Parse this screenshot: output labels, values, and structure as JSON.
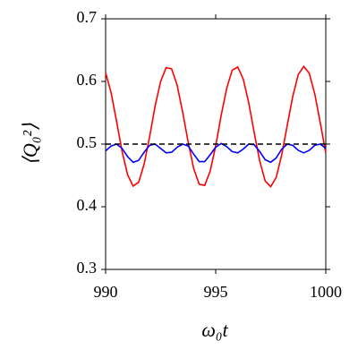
{
  "chart_data": {
    "type": "line",
    "xlabel": "ω₀t",
    "ylabel": "⟨Q₀²⟩",
    "x": [
      990,
      990.25,
      990.5,
      990.75,
      991,
      991.25,
      991.5,
      991.75,
      992,
      992.25,
      992.5,
      992.75,
      993,
      993.25,
      993.5,
      993.75,
      994,
      994.25,
      994.5,
      994.75,
      995,
      995.25,
      995.5,
      995.75,
      996,
      996.25,
      996.5,
      996.75,
      997,
      997.25,
      997.5,
      997.75,
      998,
      998.25,
      998.5,
      998.75,
      999,
      999.25,
      999.5,
      999.75,
      1000
    ],
    "series": [
      {
        "color": "#ff0000",
        "dash": false,
        "values": [
          0.614,
          0.582,
          0.536,
          0.488,
          0.451,
          0.433,
          0.439,
          0.468,
          0.512,
          0.561,
          0.6,
          0.622,
          0.62,
          0.594,
          0.551,
          0.503,
          0.461,
          0.436,
          0.434,
          0.457,
          0.497,
          0.546,
          0.589,
          0.618,
          0.623,
          0.604,
          0.566,
          0.518,
          0.473,
          0.441,
          0.432,
          0.447,
          0.483,
          0.53,
          0.576,
          0.611,
          0.624,
          0.613,
          0.58,
          0.534,
          0.486
        ]
      },
      {
        "color": "#0000ff",
        "dash": false,
        "values": [
          0.489,
          0.497,
          0.5,
          0.493,
          0.48,
          0.471,
          0.474,
          0.487,
          0.498,
          0.5,
          0.493,
          0.486,
          0.487,
          0.495,
          0.5,
          0.497,
          0.484,
          0.472,
          0.472,
          0.483,
          0.495,
          0.501,
          0.496,
          0.488,
          0.486,
          0.492,
          0.5,
          0.499,
          0.488,
          0.475,
          0.471,
          0.478,
          0.492,
          0.5,
          0.498,
          0.49,
          0.486,
          0.49,
          0.498,
          0.5,
          0.493
        ]
      },
      {
        "color": "#000000",
        "dash": true,
        "values": [
          0.5,
          0.5,
          0.5,
          0.5,
          0.5,
          0.5,
          0.5,
          0.5,
          0.5,
          0.5,
          0.5,
          0.5,
          0.5,
          0.5,
          0.5,
          0.5,
          0.5,
          0.5,
          0.5,
          0.5,
          0.5,
          0.5,
          0.5,
          0.5,
          0.5,
          0.5,
          0.5,
          0.5,
          0.5,
          0.5,
          0.5,
          0.5,
          0.5,
          0.5,
          0.5,
          0.5,
          0.5,
          0.5,
          0.5,
          0.5,
          0.5
        ]
      }
    ],
    "xlim": [
      990,
      1000
    ],
    "xticks": [
      990,
      995,
      1000
    ],
    "ylim": [
      0.3,
      0.7
    ],
    "yticks": [
      0.3,
      0.4,
      0.5,
      0.6,
      0.7
    ],
    "grid": false
  }
}
